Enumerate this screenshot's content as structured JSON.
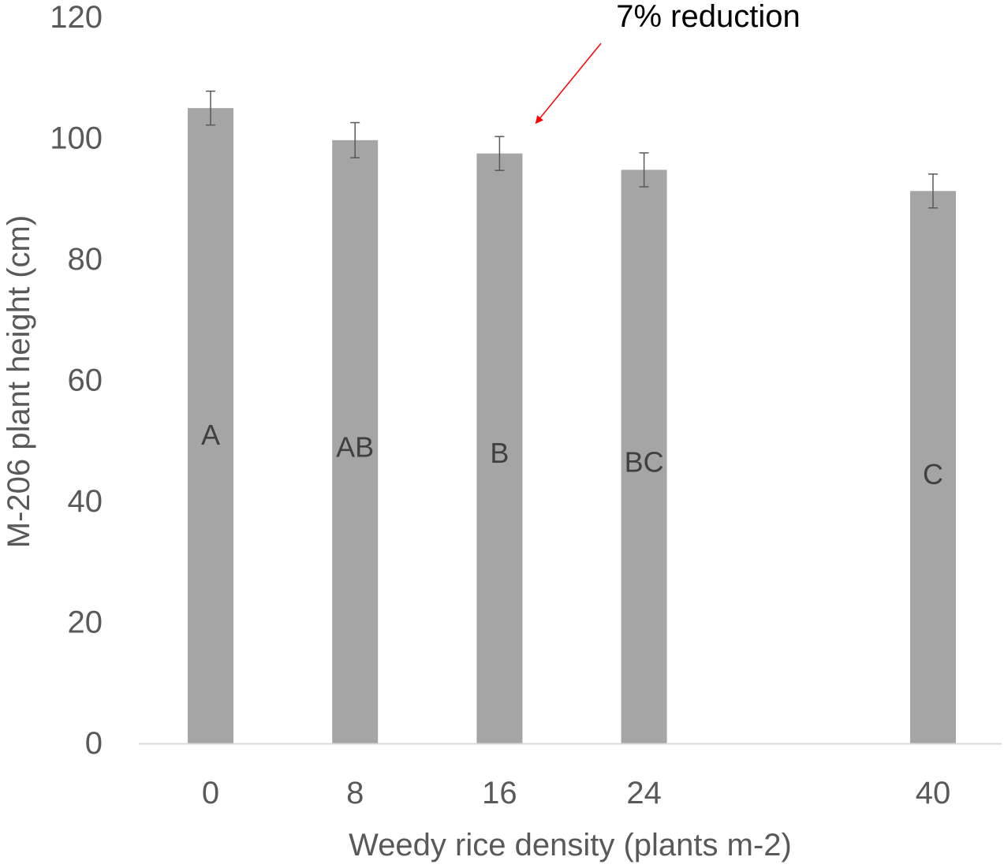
{
  "chart_data": {
    "type": "bar",
    "title": "",
    "xlabel": "Weedy rice density (plants m-2)",
    "ylabel": "M-206 plant height (cm)",
    "ylim": [
      0,
      120
    ],
    "yticks": [
      0,
      20,
      40,
      60,
      80,
      100,
      120
    ],
    "categories": [
      "0",
      "8",
      "16",
      "24",
      "40"
    ],
    "x": [
      0,
      8,
      16,
      24,
      40
    ],
    "values": [
      105,
      99.7,
      97.5,
      94.8,
      91.3
    ],
    "error": [
      2.8,
      2.9,
      2.8,
      2.8,
      2.8
    ],
    "significance_letters": [
      "A",
      "AB",
      "B",
      "BC",
      "C"
    ],
    "letter_heights": [
      51,
      49,
      48,
      46.5,
      44.5
    ],
    "grid": false,
    "legend": "none",
    "colors": {
      "bar": "#a5a5a5",
      "axis": "#d9d9d9",
      "text": "#595959",
      "error_bar": "#595959",
      "annotation_arrow": "#ff0000",
      "annotation_text": "#000000",
      "bar_label": "#404040"
    },
    "annotation": {
      "text": "7% reduction",
      "points_to_category": "16"
    }
  }
}
